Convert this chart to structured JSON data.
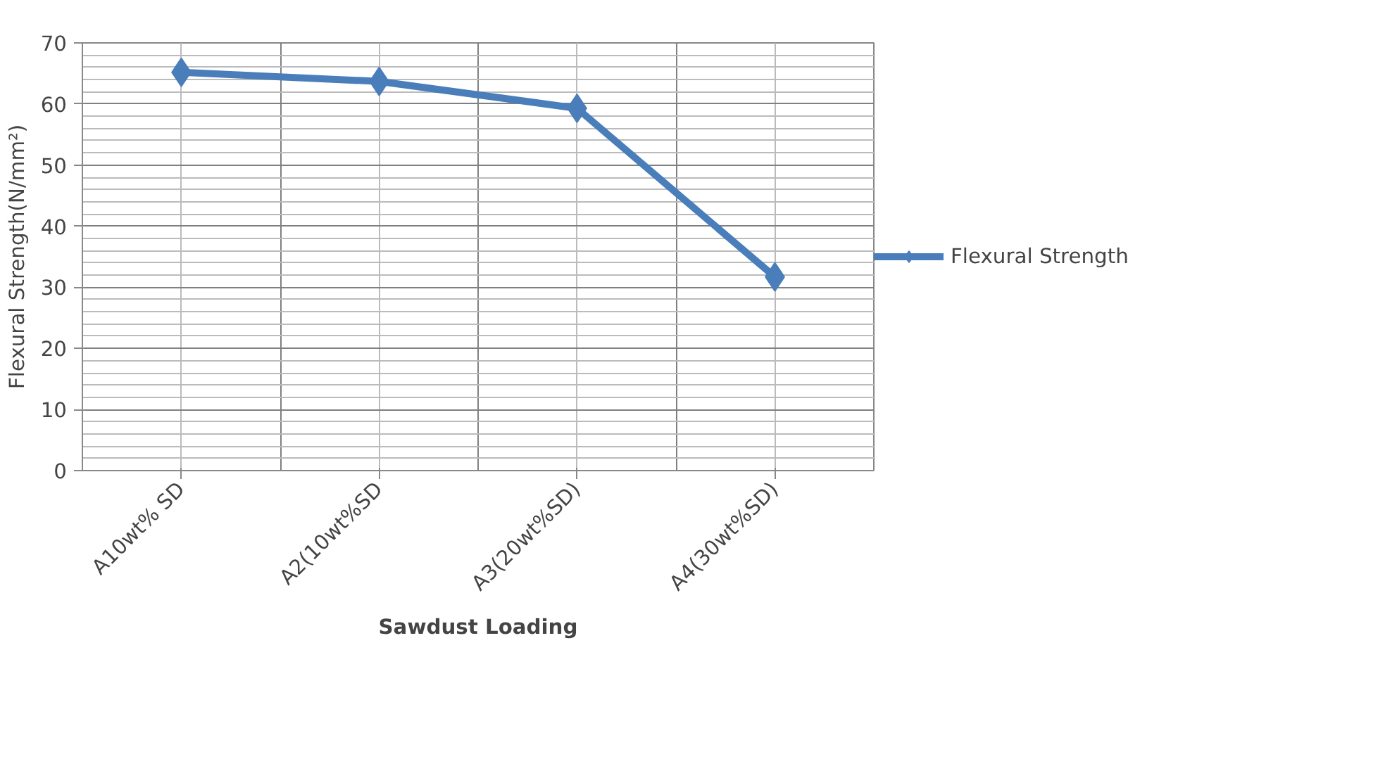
{
  "chart_data": {
    "type": "line",
    "xlabel": "Sawdust Loading",
    "ylabel": "Flexural Strength(N/mm²)",
    "categories": [
      "A10wt% SD",
      "A2(10wt%SD",
      "A3(20wt%SD)",
      "A4(30wt%SD)"
    ],
    "series": [
      {
        "name": "Flexural Strength",
        "color": "#4a7ebb",
        "values": [
          65.2,
          63.7,
          59.3,
          31.7
        ]
      }
    ],
    "ylim": [
      0,
      70
    ],
    "yticks": [
      0,
      10,
      20,
      30,
      40,
      50,
      60,
      70
    ],
    "grid": true,
    "legend": "right",
    "marker": "diamond",
    "line_style": "solid"
  }
}
